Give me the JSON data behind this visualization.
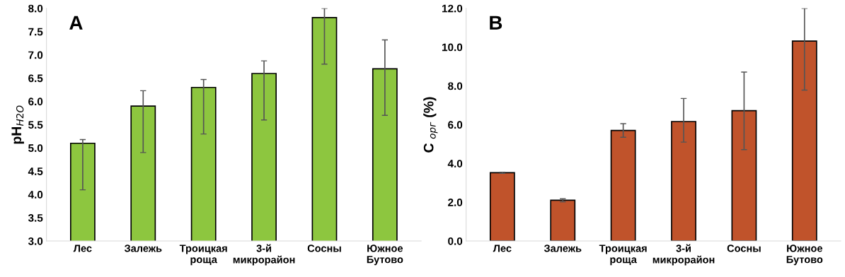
{
  "chart_data": [
    {
      "type": "bar",
      "ylabel": "pH$_{H2O}$",
      "annotations": [
        "A"
      ],
      "categories": [
        "Лес",
        "Залежь",
        "Троицкая\nроща",
        "3-й\nмикрорайон",
        "Сосны",
        "Южное\nБутово"
      ],
      "values": [
        5.1,
        5.9,
        6.3,
        6.6,
        7.8,
        6.7
      ],
      "errors": [
        [
          4.1,
          5.18
        ],
        [
          4.9,
          6.23
        ],
        [
          5.3,
          6.47
        ],
        [
          5.6,
          6.87
        ],
        [
          6.8,
          8.0
        ],
        [
          5.7,
          7.32
        ]
      ],
      "color": "#8dc63f",
      "ylim": [
        3,
        8
      ],
      "yticks": [
        {
          "value": 3,
          "label": "3.0"
        },
        {
          "value": 3.5,
          "label": "3.5"
        },
        {
          "value": 4,
          "label": "4.0"
        },
        {
          "value": 4.5,
          "label": "4.5"
        },
        {
          "value": 5,
          "label": "5.0"
        },
        {
          "value": 5.5,
          "label": "5.5"
        },
        {
          "value": 6,
          "label": "6.0"
        },
        {
          "value": 6.5,
          "label": "6.5"
        },
        {
          "value": 7,
          "label": "7.0"
        },
        {
          "value": 7.5,
          "label": "7.5"
        },
        {
          "value": 8,
          "label": "8.0"
        }
      ],
      "grid": false,
      "legend": false
    },
    {
      "type": "bar",
      "ylabel": "C $_{орг}$ (%)",
      "annotations": [
        "B"
      ],
      "categories": [
        "Лес",
        "Залежь",
        "Троицкая\nроща",
        "3-й\nмикрорайон",
        "Сосны",
        "Южное\nБутово"
      ],
      "values": [
        3.52,
        2.1,
        5.7,
        6.16,
        6.72,
        10.31
      ],
      "errors": [
        [
          3.49,
          3.55
        ],
        [
          2.02,
          2.18
        ],
        [
          5.35,
          6.05
        ],
        [
          5.1,
          7.35
        ],
        [
          4.71,
          8.71
        ],
        [
          7.78,
          12.0
        ]
      ],
      "color": "#c0532b",
      "ylim": [
        0,
        12
      ],
      "yticks": [
        {
          "value": 0,
          "label": "0.0"
        },
        {
          "value": 2,
          "label": "2.0"
        },
        {
          "value": 4,
          "label": "4.0"
        },
        {
          "value": 6,
          "label": "6.0"
        },
        {
          "value": 8,
          "label": "8.0"
        },
        {
          "value": 10,
          "label": "10.0"
        },
        {
          "value": 12,
          "label": "12.0"
        }
      ],
      "grid": false,
      "legend": false
    }
  ]
}
